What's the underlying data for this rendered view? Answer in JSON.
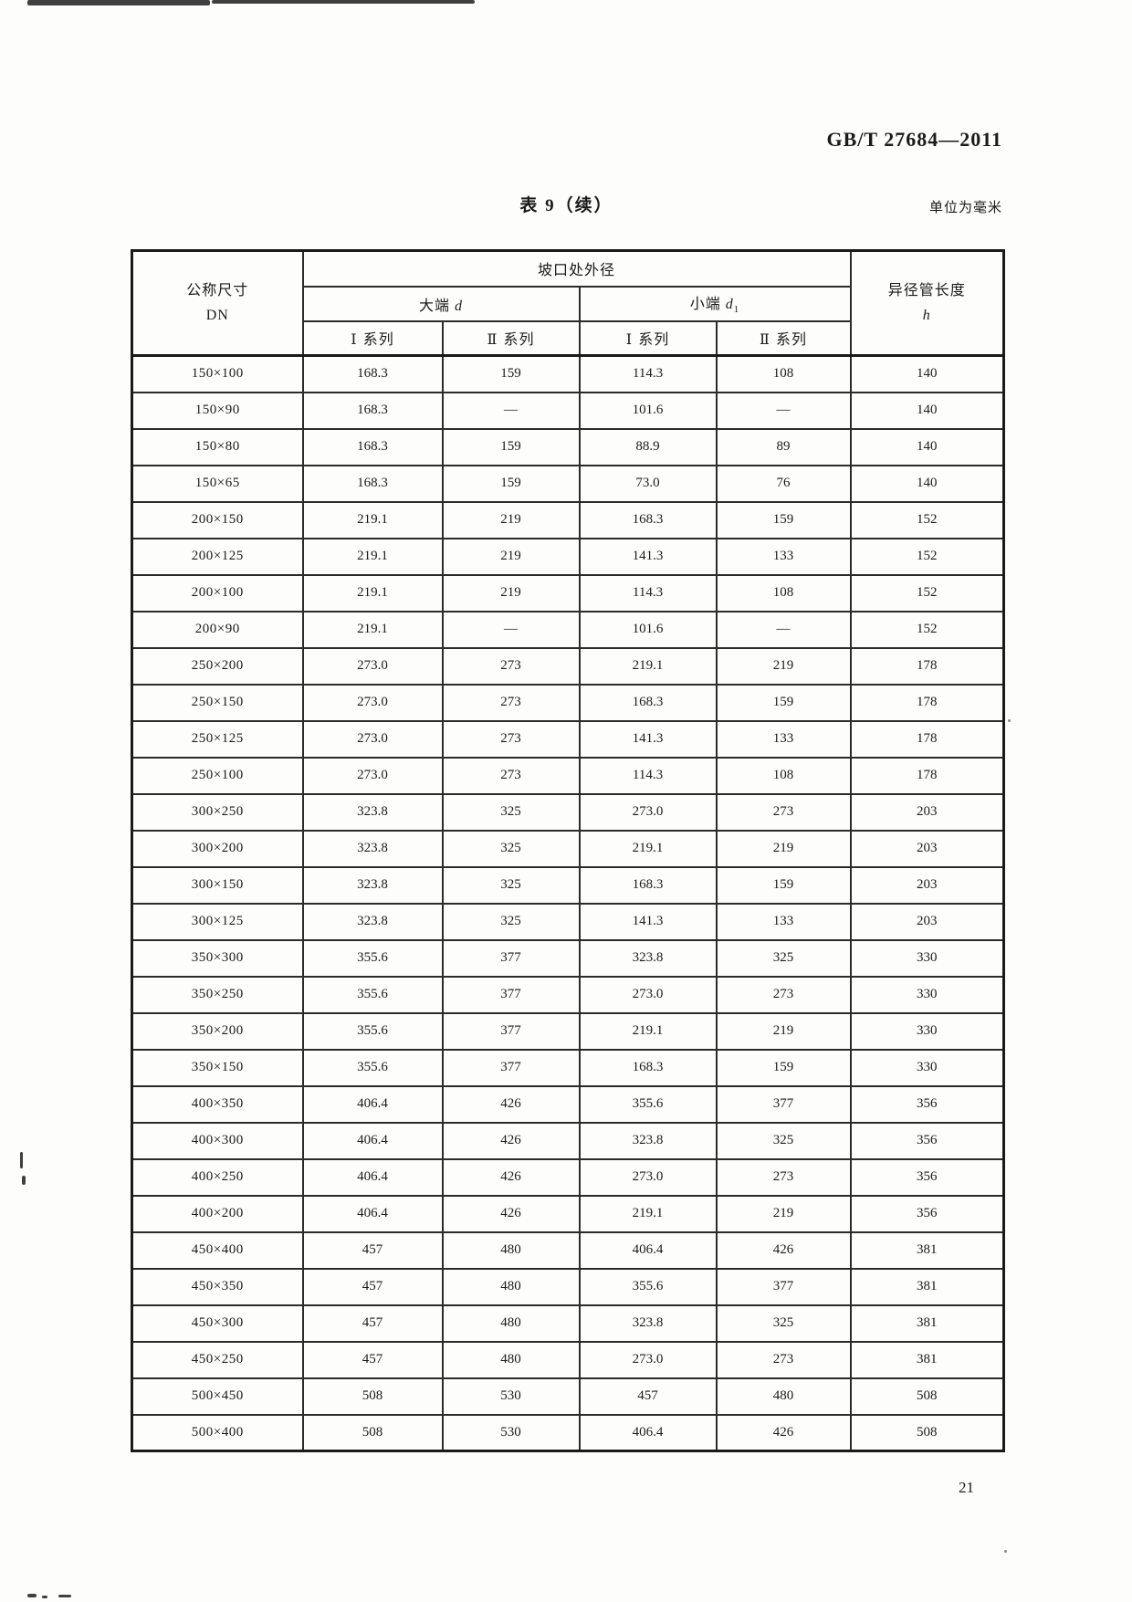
{
  "page": {
    "standard_code": "GB/T 27684—2011",
    "table_caption": "表 9（续）",
    "unit_note": "单位为毫米",
    "page_number": "21"
  },
  "table": {
    "header": {
      "dn_line1": "公称尺寸",
      "dn_line2": "DN",
      "bevel_od": "坡口处外径",
      "big_end_label": "大端",
      "big_end_symbol": "d",
      "small_end_label": "小端",
      "small_end_symbol": "d",
      "small_end_subscript": "1",
      "series1": "Ⅰ 系列",
      "series2": "Ⅱ 系列",
      "length_line1": "异径管长度",
      "length_symbol": "h"
    },
    "rows": [
      {
        "dn": "150×100",
        "big1": "168.3",
        "big2": "159",
        "small1": "114.3",
        "small2": "108",
        "h": "140"
      },
      {
        "dn": "150×90",
        "big1": "168.3",
        "big2": "—",
        "small1": "101.6",
        "small2": "—",
        "h": "140"
      },
      {
        "dn": "150×80",
        "big1": "168.3",
        "big2": "159",
        "small1": "88.9",
        "small2": "89",
        "h": "140"
      },
      {
        "dn": "150×65",
        "big1": "168.3",
        "big2": "159",
        "small1": "73.0",
        "small2": "76",
        "h": "140"
      },
      {
        "dn": "200×150",
        "big1": "219.1",
        "big2": "219",
        "small1": "168.3",
        "small2": "159",
        "h": "152"
      },
      {
        "dn": "200×125",
        "big1": "219.1",
        "big2": "219",
        "small1": "141.3",
        "small2": "133",
        "h": "152"
      },
      {
        "dn": "200×100",
        "big1": "219.1",
        "big2": "219",
        "small1": "114.3",
        "small2": "108",
        "h": "152"
      },
      {
        "dn": "200×90",
        "big1": "219.1",
        "big2": "—",
        "small1": "101.6",
        "small2": "—",
        "h": "152"
      },
      {
        "dn": "250×200",
        "big1": "273.0",
        "big2": "273",
        "small1": "219.1",
        "small2": "219",
        "h": "178"
      },
      {
        "dn": "250×150",
        "big1": "273.0",
        "big2": "273",
        "small1": "168.3",
        "small2": "159",
        "h": "178"
      },
      {
        "dn": "250×125",
        "big1": "273.0",
        "big2": "273",
        "small1": "141.3",
        "small2": "133",
        "h": "178"
      },
      {
        "dn": "250×100",
        "big1": "273.0",
        "big2": "273",
        "small1": "114.3",
        "small2": "108",
        "h": "178"
      },
      {
        "dn": "300×250",
        "big1": "323.8",
        "big2": "325",
        "small1": "273.0",
        "small2": "273",
        "h": "203"
      },
      {
        "dn": "300×200",
        "big1": "323.8",
        "big2": "325",
        "small1": "219.1",
        "small2": "219",
        "h": "203"
      },
      {
        "dn": "300×150",
        "big1": "323.8",
        "big2": "325",
        "small1": "168.3",
        "small2": "159",
        "h": "203"
      },
      {
        "dn": "300×125",
        "big1": "323.8",
        "big2": "325",
        "small1": "141.3",
        "small2": "133",
        "h": "203"
      },
      {
        "dn": "350×300",
        "big1": "355.6",
        "big2": "377",
        "small1": "323.8",
        "small2": "325",
        "h": "330"
      },
      {
        "dn": "350×250",
        "big1": "355.6",
        "big2": "377",
        "small1": "273.0",
        "small2": "273",
        "h": "330"
      },
      {
        "dn": "350×200",
        "big1": "355.6",
        "big2": "377",
        "small1": "219.1",
        "small2": "219",
        "h": "330"
      },
      {
        "dn": "350×150",
        "big1": "355.6",
        "big2": "377",
        "small1": "168.3",
        "small2": "159",
        "h": "330"
      },
      {
        "dn": "400×350",
        "big1": "406.4",
        "big2": "426",
        "small1": "355.6",
        "small2": "377",
        "h": "356"
      },
      {
        "dn": "400×300",
        "big1": "406.4",
        "big2": "426",
        "small1": "323.8",
        "small2": "325",
        "h": "356"
      },
      {
        "dn": "400×250",
        "big1": "406.4",
        "big2": "426",
        "small1": "273.0",
        "small2": "273",
        "h": "356"
      },
      {
        "dn": "400×200",
        "big1": "406.4",
        "big2": "426",
        "small1": "219.1",
        "small2": "219",
        "h": "356"
      },
      {
        "dn": "450×400",
        "big1": "457",
        "big2": "480",
        "small1": "406.4",
        "small2": "426",
        "h": "381"
      },
      {
        "dn": "450×350",
        "big1": "457",
        "big2": "480",
        "small1": "355.6",
        "small2": "377",
        "h": "381"
      },
      {
        "dn": "450×300",
        "big1": "457",
        "big2": "480",
        "small1": "323.8",
        "small2": "325",
        "h": "381"
      },
      {
        "dn": "450×250",
        "big1": "457",
        "big2": "480",
        "small1": "273.0",
        "small2": "273",
        "h": "381"
      },
      {
        "dn": "500×450",
        "big1": "508",
        "big2": "530",
        "small1": "457",
        "small2": "480",
        "h": "508"
      },
      {
        "dn": "500×400",
        "big1": "508",
        "big2": "530",
        "small1": "406.4",
        "small2": "426",
        "h": "508"
      }
    ]
  }
}
